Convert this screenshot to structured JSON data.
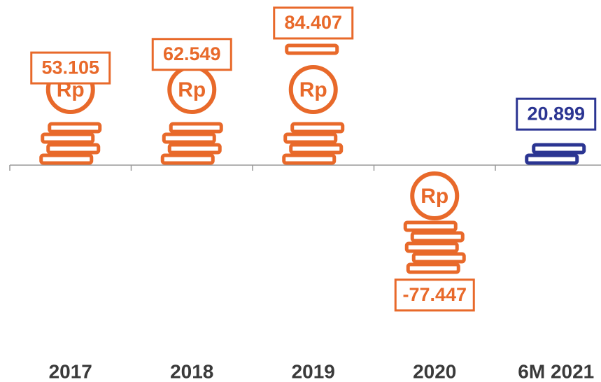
{
  "chart_data": {
    "type": "pictogram-bar",
    "categories": [
      "2017",
      "2018",
      "2019",
      "2020",
      "6M 2021"
    ],
    "values": [
      53.105,
      62.549,
      84.407,
      -77.447,
      20.899
    ],
    "colors": [
      "#e8692a",
      "#e8692a",
      "#e8692a",
      "#e8692a",
      "#2b3592"
    ]
  }
}
